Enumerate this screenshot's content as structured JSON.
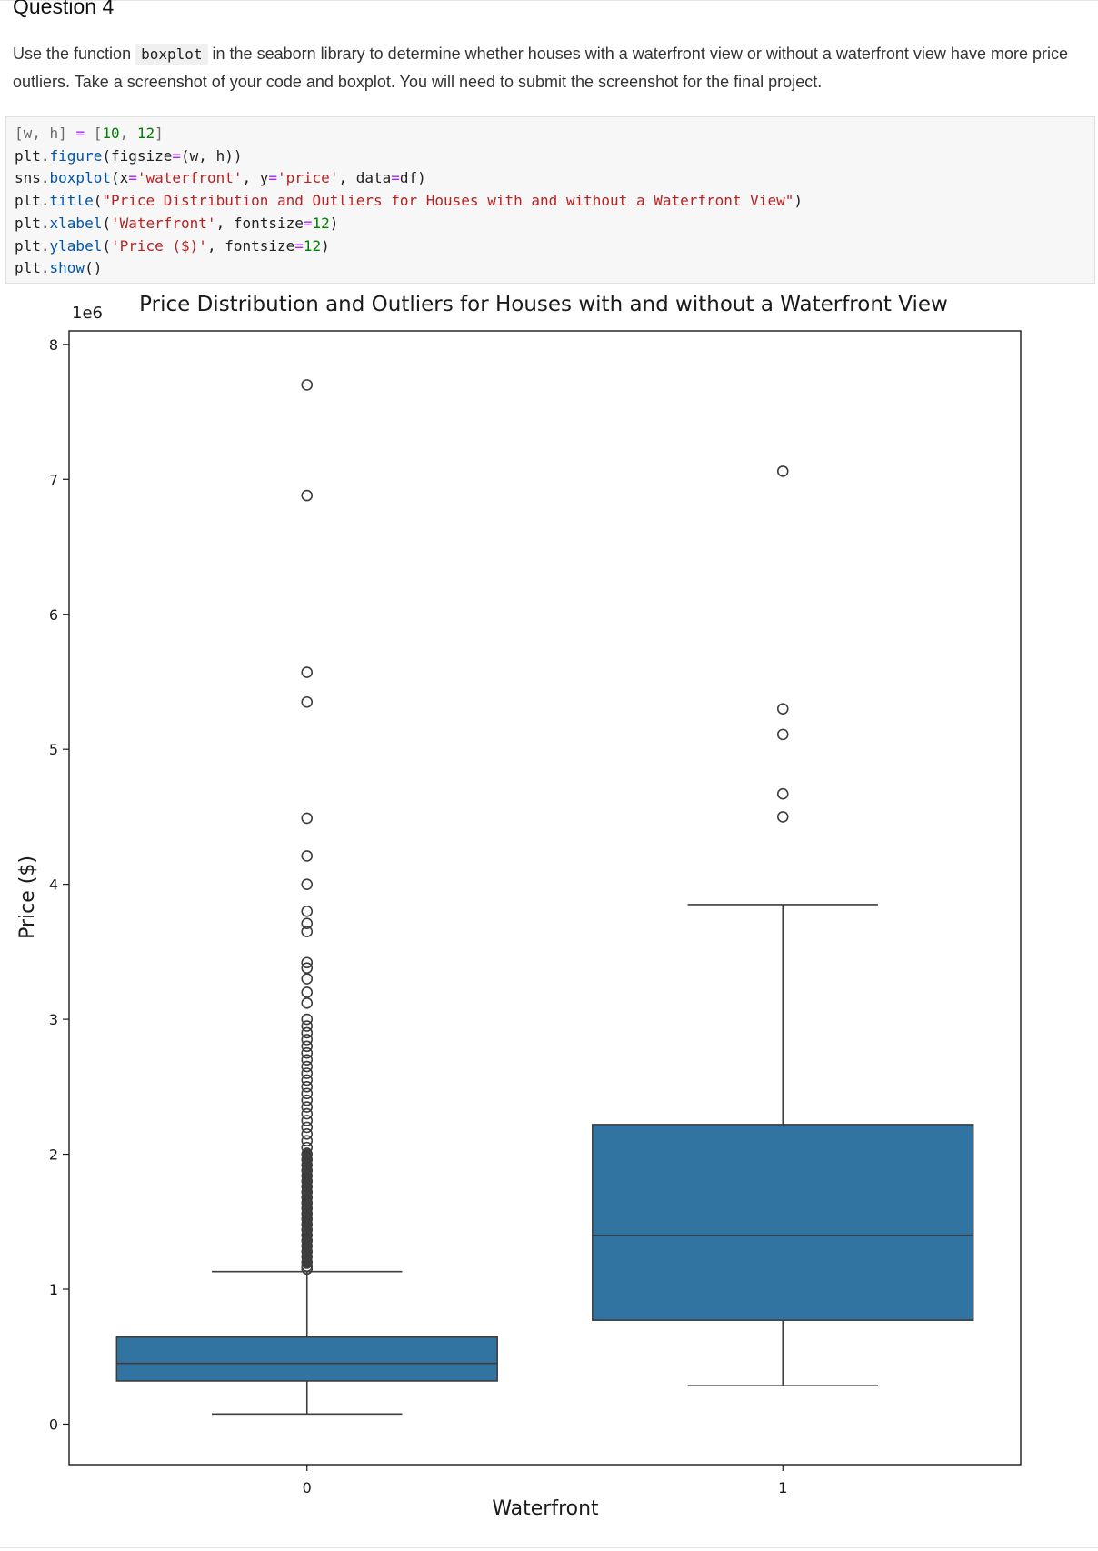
{
  "question": {
    "title": "Question 4",
    "desc_before": "Use the function ",
    "desc_code": "boxplot",
    "desc_after": " in the seaborn library to determine whether houses with a waterfront view or without a waterfront view have more price outliers. Take a screenshot of your code and boxplot. You will need to submit the screenshot for the final project."
  },
  "code_cell": {
    "lines": [
      [
        {
          "t": "[w, h] ",
          "c": "#6a6a6a"
        },
        {
          "t": "=",
          "c": "#aa22ff"
        },
        {
          "t": " [",
          "c": "#6a6a6a"
        },
        {
          "t": "10",
          "c": "#008000"
        },
        {
          "t": ", ",
          "c": "#6a6a6a"
        },
        {
          "t": "12",
          "c": "#008000"
        },
        {
          "t": "]",
          "c": "#6a6a6a"
        }
      ],
      [
        {
          "t": "plt.",
          "c": "#212121"
        },
        {
          "t": "figure",
          "c": "#0055aa"
        },
        {
          "t": "(figsize",
          "c": "#212121"
        },
        {
          "t": "=",
          "c": "#aa22ff"
        },
        {
          "t": "(w, h))",
          "c": "#212121"
        }
      ],
      [
        {
          "t": "sns.",
          "c": "#212121"
        },
        {
          "t": "boxplot",
          "c": "#0055aa"
        },
        {
          "t": "(x",
          "c": "#212121"
        },
        {
          "t": "=",
          "c": "#aa22ff"
        },
        {
          "t": "'waterfront'",
          "c": "#ba2121"
        },
        {
          "t": ", y",
          "c": "#212121"
        },
        {
          "t": "=",
          "c": "#aa22ff"
        },
        {
          "t": "'price'",
          "c": "#ba2121"
        },
        {
          "t": ", data",
          "c": "#212121"
        },
        {
          "t": "=",
          "c": "#aa22ff"
        },
        {
          "t": "df)",
          "c": "#212121"
        }
      ],
      [
        {
          "t": "plt.",
          "c": "#212121"
        },
        {
          "t": "title",
          "c": "#0055aa"
        },
        {
          "t": "(",
          "c": "#212121"
        },
        {
          "t": "\"Price Distribution and Outliers for Houses with and without a Waterfront View\"",
          "c": "#ba2121"
        },
        {
          "t": ")",
          "c": "#212121"
        }
      ],
      [
        {
          "t": "plt.",
          "c": "#212121"
        },
        {
          "t": "xlabel",
          "c": "#0055aa"
        },
        {
          "t": "(",
          "c": "#212121"
        },
        {
          "t": "'Waterfront'",
          "c": "#ba2121"
        },
        {
          "t": ", fontsize",
          "c": "#212121"
        },
        {
          "t": "=",
          "c": "#aa22ff"
        },
        {
          "t": "12",
          "c": "#008000"
        },
        {
          "t": ")",
          "c": "#212121"
        }
      ],
      [
        {
          "t": "plt.",
          "c": "#212121"
        },
        {
          "t": "ylabel",
          "c": "#0055aa"
        },
        {
          "t": "(",
          "c": "#212121"
        },
        {
          "t": "'Price ($)'",
          "c": "#ba2121"
        },
        {
          "t": ", fontsize",
          "c": "#212121"
        },
        {
          "t": "=",
          "c": "#aa22ff"
        },
        {
          "t": "12",
          "c": "#008000"
        },
        {
          "t": ")",
          "c": "#212121"
        }
      ],
      [
        {
          "t": "plt.",
          "c": "#212121"
        },
        {
          "t": "show",
          "c": "#0055aa"
        },
        {
          "t": "()",
          "c": "#212121"
        }
      ]
    ]
  },
  "chart_data": {
    "type": "box",
    "title": "Price Distribution and Outliers for Houses with and without a Waterfront View",
    "xlabel": "Waterfront",
    "ylabel": "Price ($)",
    "y_offset_label": "1e6",
    "y_scale": 1000000,
    "ylim": [
      -0.3,
      8.1
    ],
    "yticks": [
      0,
      1,
      2,
      3,
      4,
      5,
      6,
      7,
      8
    ],
    "categories": [
      "0",
      "1"
    ],
    "box_color": "#3274a1",
    "line_color": "#3d3d3d",
    "grid": false,
    "boxes": [
      {
        "category": "0",
        "whisker_low": 0.075,
        "q1": 0.32,
        "median": 0.45,
        "q3": 0.645,
        "whisker_high": 1.13,
        "outliers": [
          7.7,
          6.88,
          5.57,
          5.35,
          4.49,
          4.21,
          4.0,
          3.8,
          3.71,
          3.65,
          3.42,
          3.38,
          3.3,
          3.2,
          3.12,
          3.0,
          2.95,
          2.9,
          2.85,
          2.8,
          2.75,
          2.7,
          2.65,
          2.6,
          2.55,
          2.5,
          2.45,
          2.4,
          2.35,
          2.3,
          2.25,
          2.2,
          2.15,
          2.1,
          2.05,
          2.0,
          1.96,
          1.92,
          1.88,
          1.84,
          1.8,
          1.76,
          1.72,
          1.68,
          1.64,
          1.6,
          1.56,
          1.52,
          1.48,
          1.44,
          1.4,
          1.36,
          1.32,
          1.28,
          1.24,
          1.2,
          1.17,
          1.15
        ]
      },
      {
        "category": "1",
        "whisker_low": 0.285,
        "q1": 0.77,
        "median": 1.4,
        "q3": 2.22,
        "whisker_high": 3.85,
        "outliers": [
          7.06,
          5.3,
          5.11,
          4.67,
          4.5
        ]
      }
    ]
  }
}
